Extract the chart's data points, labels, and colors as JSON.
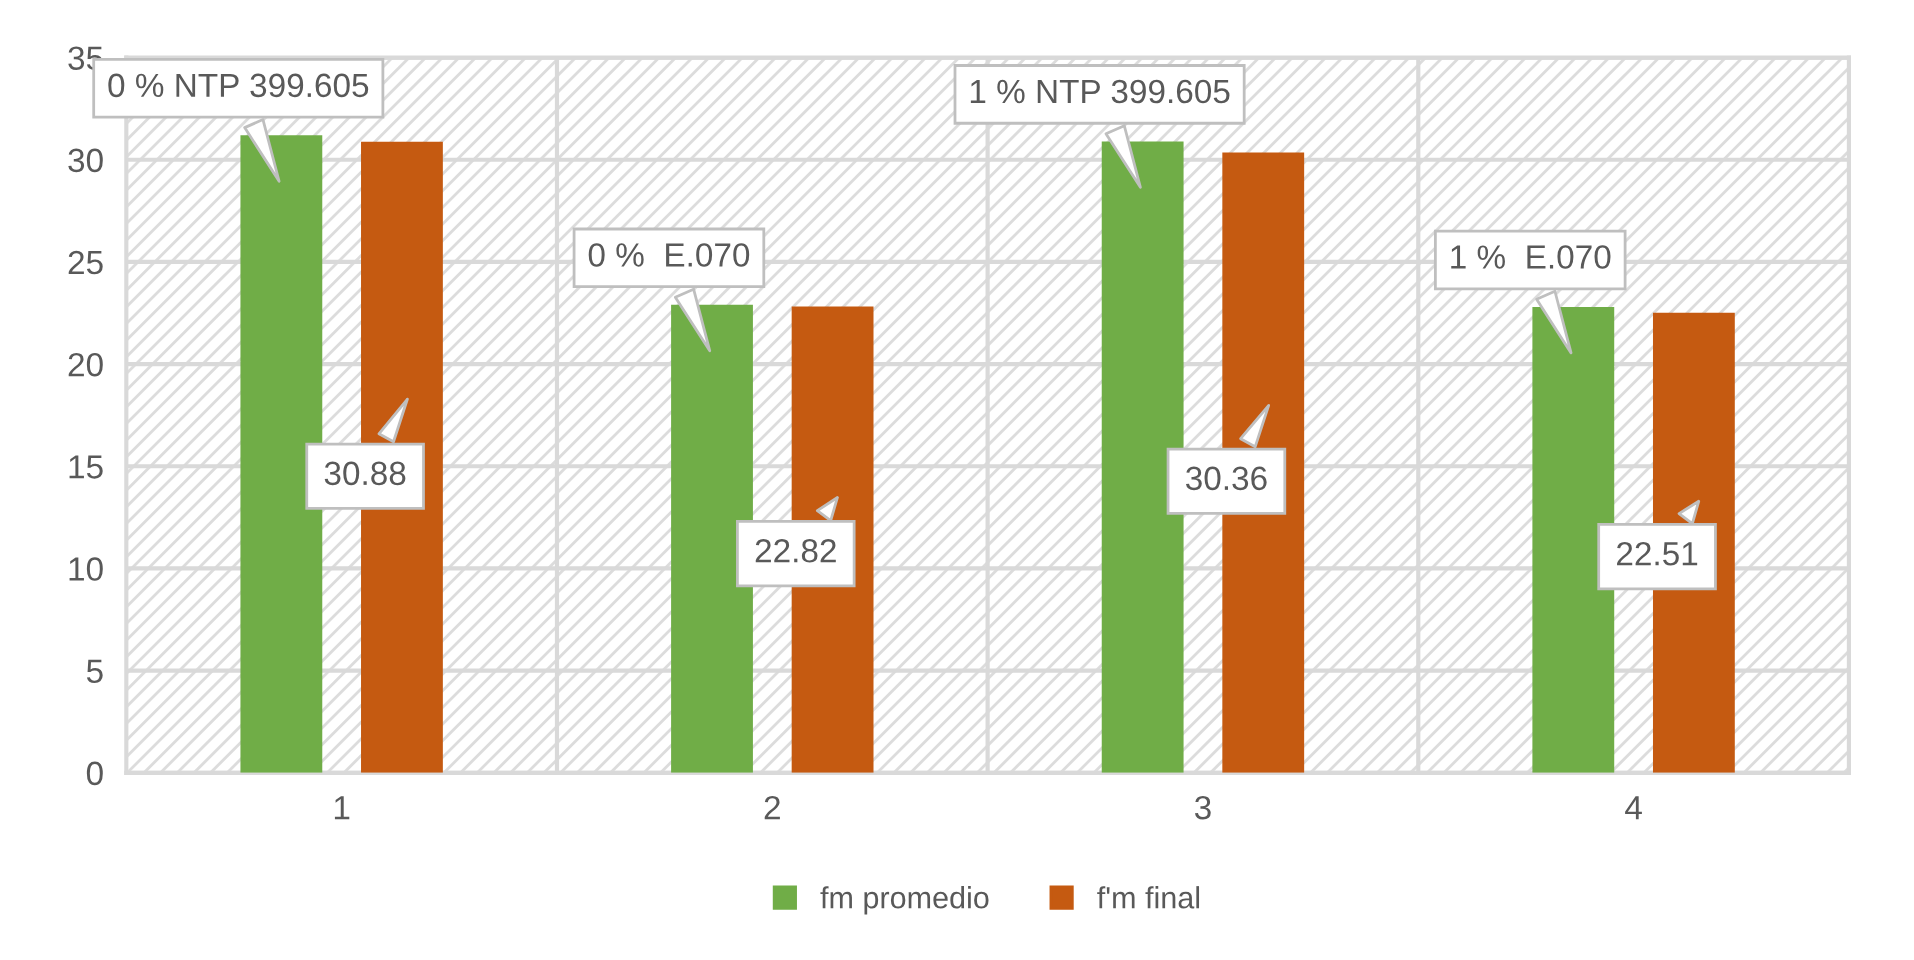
{
  "chart_data": {
    "type": "bar",
    "categories": [
      "1",
      "2",
      "3",
      "4"
    ],
    "series": [
      {
        "name": "fm promedio",
        "color": "#70ad47",
        "values": [
          31.2,
          22.9,
          30.9,
          22.8
        ]
      },
      {
        "name": "f'm final",
        "color": "#c55a11",
        "values": [
          30.88,
          22.82,
          30.36,
          22.51
        ],
        "value_labels": [
          "30.88",
          "22.82",
          "30.36",
          "22.51"
        ]
      }
    ],
    "annotations": [
      "0 % NTP 399.605",
      "0 %  E.070",
      "1 % NTP 399.605",
      "1 %  E.070"
    ],
    "ylim": [
      0,
      35
    ],
    "yticks": [
      0,
      5,
      10,
      15,
      20,
      25,
      30,
      35
    ],
    "grid": true,
    "legend": "bottom"
  }
}
